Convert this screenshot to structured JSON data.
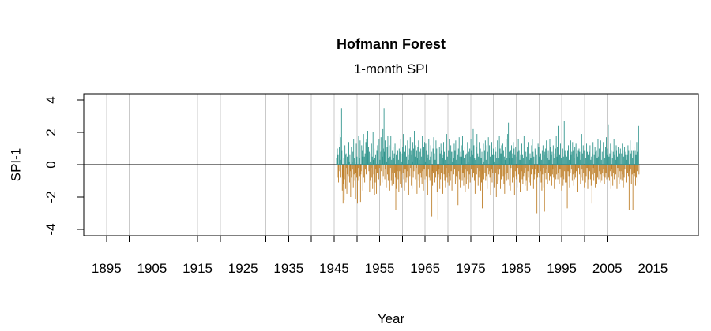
{
  "figure": {
    "title": "Hofmann Forest",
    "subtitle": "1-month SPI",
    "x_axis_label": "Year",
    "y_axis_label": "SPI-1"
  },
  "colors": {
    "positive": "#35978F",
    "negative": "#BF812D",
    "grid": "#C9C9C9",
    "axis": "#000000",
    "background": "#FFFFFF"
  },
  "chart_data": {
    "type": "bar",
    "title": "Hofmann Forest",
    "subtitle": "1-month SPI",
    "xlabel": "Year",
    "ylabel": "SPI-1",
    "xlim": [
      1890,
      2025
    ],
    "ylim": [
      -4.4,
      4.4
    ],
    "x_ticks": [
      1895,
      1900,
      1905,
      1910,
      1915,
      1920,
      1925,
      1930,
      1935,
      1940,
      1945,
      1950,
      1955,
      1960,
      1965,
      1970,
      1975,
      1980,
      1985,
      1990,
      1995,
      2000,
      2005,
      2010,
      2015
    ],
    "x_tick_labels": [
      1895,
      1905,
      1915,
      1925,
      1935,
      1945,
      1955,
      1965,
      1975,
      1985,
      1995,
      2005,
      2015
    ],
    "y_ticks": [
      -4,
      -2,
      0,
      2,
      4
    ],
    "grid": "vertical gray lines at every 5-year tick",
    "zero_line": true,
    "legend": "none",
    "frequency": "monthly",
    "series_start_year": 1945,
    "series_start_month": 7,
    "positive_color": "#35978F",
    "negative_color": "#BF812D",
    "values": [
      0.4,
      -0.6,
      1.0,
      0.6,
      -0.8,
      -1.1,
      0.6,
      1.1,
      -0.4,
      1.9,
      0.3,
      -0.8,
      1.7,
      3.5,
      0.9,
      -1.6,
      -0.8,
      -2.4,
      -1.2,
      0.4,
      -2.2,
      -0.9,
      1.2,
      0.6,
      -1.5,
      0.7,
      -0.2,
      -1.8,
      0.5,
      -0.6,
      0.9,
      -0.7,
      1.4,
      0.2,
      -1.1,
      0.6,
      -0.4,
      -2.0,
      -0.8,
      1.1,
      0.5,
      0.2,
      -0.3,
      0.8,
      -1.4,
      1.6,
      -0.6,
      0.4,
      -1.0,
      0.2,
      -2.1,
      -0.5,
      1.3,
      -0.8,
      0.5,
      -2.4,
      -1.0,
      -0.2,
      1.8,
      1.2,
      0.4,
      -0.7,
      1.5,
      -2.3,
      -0.6,
      -0.4,
      1.2,
      0.5,
      0.9,
      -1.6,
      0.3,
      1.9,
      -0.8,
      0.5,
      -1.1,
      0.7,
      -0.3,
      1.4,
      -0.6,
      1.6,
      -1.3,
      0.4,
      2.1,
      0.9,
      1.1,
      -0.4,
      0.8,
      -1.7,
      0.2,
      -1.0,
      0.7,
      -0.2,
      1.3,
      -0.8,
      0.5,
      -1.5,
      2.0,
      0.3,
      -0.6,
      1.0,
      -1.9,
      0.4,
      -1.1,
      0.6,
      -0.3,
      -1.8,
      0.9,
      -0.5,
      1.2,
      -2.2,
      -0.4,
      -0.9,
      1.6,
      -0.2,
      0.3,
      -1.3,
      0.8,
      1.7,
      -0.4,
      0.9,
      -1.1,
      0.5,
      2.2,
      -0.7,
      1.0,
      3.5,
      0.8,
      -0.9,
      1.5,
      -0.3,
      0.6,
      -1.4,
      0.2,
      1.1,
      -0.6,
      1.8,
      -1.0,
      0.4,
      -0.7,
      1.2,
      -1.6,
      0.5,
      -0.2,
      1.8,
      -1.0,
      0.3,
      -1.3,
      0.9,
      -0.5,
      1.1,
      0.4,
      -1.2,
      0.7,
      -0.5,
      1.3,
      -0.8,
      -2.8,
      0.6,
      -1.5,
      2.5,
      -0.4,
      0.9,
      -0.9,
      0.3,
      -1.7,
      1.0,
      -0.4,
      0.8,
      -1.2,
      1.6,
      -0.6,
      0.2,
      -1.4,
      0.7,
      1.1,
      -0.5,
      1.9,
      -0.9,
      0.4,
      -1.6,
      0.8,
      -0.3,
      1.2,
      -1.1,
      0.5,
      -0.8,
      -0.4,
      1.5,
      -1.0,
      0.6,
      -1.9,
      0.3,
      1.0,
      -0.7,
      1.7,
      -0.2,
      0.9,
      -1.3,
      0.6,
      -1.5,
      0.2,
      1.4,
      -0.8,
      1.0,
      -0.4,
      2.1,
      1.2,
      0.5,
      -0.9,
      1.3,
      -0.2,
      0.9,
      -1.8,
      0.4,
      1.1,
      -0.6,
      1.5,
      -1.0,
      0.3,
      -1.4,
      0.8,
      -0.5,
      1.0,
      -0.8,
      0.5,
      -1.2,
      1.8,
      -0.4,
      0.7,
      -1.6,
      1.1,
      -0.3,
      1.4,
      -0.9,
      0.2,
      1.3,
      -0.7,
      0.9,
      -1.1,
      0.4,
      -1.9,
      0.6,
      -0.3,
      1.6,
      -0.8,
      0.3,
      -1.0,
      0.5,
      1.2,
      -0.6,
      0.8,
      -3.2,
      -0.4,
      -1.3,
      1.0,
      -0.5,
      1.7,
      -0.2,
      0.7,
      -1.1,
      0.3,
      -0.8,
      1.5,
      -0.4,
      1.0,
      -1.7,
      -0.6,
      -3.4,
      -0.8,
      -0.6,
      -0.3,
      1.1,
      -1.5,
      0.7,
      -0.9,
      1.3,
      -0.5,
      0.9,
      -1.2,
      0.4,
      -1.8,
      0.6,
      1.4,
      -0.6,
      0.8,
      -1.0,
      0.3,
      -1.4,
      1.1,
      -0.2,
      1.9,
      -0.8,
      0.5,
      -1.1,
      -0.5,
      0.9,
      -1.3,
      1.6,
      -0.7,
      0.4,
      -1.0,
      1.2,
      -0.4,
      0.8,
      -1.6,
      0.2,
      0.8,
      -1.9,
      0.4,
      -0.6,
      1.3,
      -0.3,
      0.9,
      -1.2,
      1.5,
      -0.7,
      0.3,
      -1.0,
      -0.8,
      0.6,
      -2.5,
      1.0,
      -0.4,
      1.7,
      -0.9,
      0.5,
      -1.4,
      0.8,
      -0.2,
      1.2,
      0.5,
      -1.0,
      1.8,
      -0.5,
      0.9,
      -1.3,
      0.4,
      -0.8,
      1.1,
      -1.7,
      0.6,
      -0.3,
      -1.2,
      0.7,
      -0.4,
      1.4,
      -0.9,
      0.2,
      -1.5,
      0.8,
      -0.6,
      1.0,
      -1.1,
      0.5,
      1.6,
      -0.3,
      0.9,
      -1.4,
      0.6,
      -0.8,
      2.2,
      -0.5,
      1.2,
      -1.0,
      0.4,
      -1.8,
      0.3,
      -0.9,
      1.1,
      -0.6,
      1.9,
      -0.2,
      0.7,
      -1.3,
      0.5,
      -0.8,
      1.4,
      -0.4,
      -0.7,
      1.0,
      -1.6,
      0.4,
      -1.1,
      0.8,
      -2.7,
      -0.6,
      -0.3,
      1.3,
      -0.9,
      0.2,
      0.9,
      -0.5,
      1.5,
      -1.0,
      0.3,
      -0.7,
      1.2,
      -1.5,
      0.8,
      -0.2,
      1.7,
      -0.6,
      -0.4,
      1.2,
      -0.8,
      0.5,
      -1.9,
      0.9,
      -0.3,
      1.4,
      -1.1,
      0.6,
      -0.5,
      1.0,
      0.6,
      -1.4,
      0.2,
      -0.9,
      1.1,
      -0.5,
      0.8,
      -2.0,
      0.4,
      -1.2,
      1.5,
      -0.3,
      -1.0,
      0.4,
      -0.6,
      1.8,
      -0.3,
      1.0,
      -1.5,
      0.7,
      -0.9,
      1.2,
      -0.4,
      0.8,
      1.3,
      -0.7,
      0.9,
      -1.2,
      0.5,
      -1.8,
      0.3,
      1.1,
      -0.6,
      1.6,
      -1.0,
      0.4,
      -0.5,
      1.9,
      -0.9,
      2.6,
      0.4,
      0.8,
      -1.3,
      0.5,
      -1.6,
      0.9,
      -0.2,
      1.2,
      0.4,
      -1.1,
      0.7,
      -0.3,
      1.4,
      -0.8,
      1.0,
      -1.9,
      0.6,
      -0.4,
      1.1,
      -0.7,
      -0.9,
      0.5,
      -1.4,
      0.8,
      -0.2,
      1.6,
      -0.6,
      0.9,
      -1.1,
      0.3,
      -1.7,
      0.6,
      1.0,
      -0.4,
      1.3,
      -0.9,
      0.6,
      -1.2,
      0.4,
      -0.7,
      1.8,
      -0.5,
      0.9,
      -1.3,
      -0.2,
      0.8,
      -1.0,
      0.5,
      -1.6,
      1.1,
      -0.4,
      1.4,
      -0.8,
      0.6,
      -1.1,
      0.3,
      0.7,
      -1.3,
      0.4,
      -0.6,
      1.2,
      -0.9,
      1.6,
      -0.3,
      0.8,
      -1.5,
      0.5,
      -0.9,
      -0.6,
      1.0,
      -0.3,
      0.9,
      -1.2,
      0.6,
      -3.0,
      -0.4,
      -0.8,
      1.3,
      -0.5,
      1.1,
      0.5,
      -0.8,
      1.4,
      -0.4,
      0.7,
      -1.1,
      0.3,
      -1.6,
      0.9,
      -0.6,
      1.2,
      -0.2,
      -1.4,
      0.6,
      -2.9,
      0.8,
      -0.5,
      1.0,
      -0.9,
      1.5,
      -0.3,
      0.7,
      -1.2,
      0.4,
      0.9,
      -0.5,
      0.3,
      -1.0,
      1.6,
      -0.7,
      1.1,
      -0.4,
      0.6,
      -1.3,
      0.8,
      -0.6,
      -0.3,
      1.2,
      -0.8,
      0.4,
      -1.5,
      0.7,
      -0.2,
      1.0,
      -0.9,
      1.8,
      -0.6,
      0.5,
      1.1,
      -0.9,
      2.4,
      -0.5,
      0.8,
      -1.2,
      0.6,
      -0.3,
      1.3,
      -0.8,
      0.4,
      -1.6,
      0.4,
      -0.7,
      1.0,
      -1.3,
      0.5,
      -0.9,
      2.7,
      -0.4,
      0.9,
      -1.1,
      0.6,
      -0.8,
      -1.1,
      0.5,
      -2.7,
      0.9,
      -0.4,
      1.2,
      -0.7,
      0.3,
      -1.4,
      0.8,
      -0.5,
      1.5,
      0.6,
      -0.3,
      0.8,
      -1.0,
      1.4,
      -0.6,
      0.9,
      -1.3,
      0.4,
      -0.9,
      1.1,
      -0.5,
      -0.8,
      1.3,
      -0.4,
      0.7,
      -1.1,
      0.5,
      -1.7,
      0.9,
      -0.2,
      1.0,
      -0.6,
      0.8,
      0.3,
      -1.2,
      0.6,
      -0.8,
      1.9,
      -0.3,
      0.7,
      -1.0,
      1.2,
      -0.5,
      0.9,
      -1.4,
      -0.6,
      0.9,
      -1.1,
      0.4,
      -0.7,
      1.3,
      -0.2,
      0.8,
      -1.5,
      0.6,
      -0.9,
      1.0,
      0.8,
      -0.4,
      1.2,
      -0.9,
      0.3,
      -1.3,
      0.5,
      -2.4,
      0.7,
      -0.6,
      1.4,
      -0.2,
      -1.0,
      0.6,
      -0.5,
      1.1,
      -1.4,
      0.8,
      -0.3,
      0.9,
      -1.2,
      0.4,
      -0.8,
      1.6,
      0.5,
      -0.9,
      1.0,
      -0.4,
      0.7,
      -1.1,
      1.5,
      -0.6,
      0.3,
      -1.0,
      0.8,
      -0.5,
      -0.3,
      1.4,
      -0.7,
      0.9,
      -1.2,
      0.4,
      -0.8,
      1.1,
      -0.5,
      1.7,
      -0.9,
      0.6,
      1.0,
      -0.6,
      2.5,
      -0.8,
      0.5,
      -1.0,
      0.7,
      -0.4,
      1.3,
      -1.5,
      0.9,
      -0.3,
      -0.7,
      0.4,
      -1.3,
      0.8,
      -0.5,
      1.6,
      -0.9,
      0.6,
      -1.1,
      0.3,
      -0.6,
      1.2,
      0.9,
      -1.5,
      0.5,
      -0.2,
      1.1,
      -0.8,
      0.4,
      -1.2,
      0.7,
      -0.4,
      1.0,
      -0.9,
      -0.4,
      0.7,
      -1.0,
      1.3,
      -0.6,
      0.9,
      -1.4,
      0.5,
      -0.8,
      1.1,
      -0.3,
      0.6,
      0.8,
      -0.9,
      0.3,
      -1.1,
      0.6,
      -0.5,
      1.2,
      -0.7,
      0.9,
      -2.8,
      -0.4,
      -1.0,
      1.5,
      -0.3,
      0.7,
      -1.2,
      0.9,
      -0.6,
      0.4,
      -2.8,
      0.9,
      -0.5,
      1.1,
      -0.7,
      -0.5,
      0.9,
      -1.3,
      0.6,
      -0.8,
      1.4,
      -0.4,
      0.8,
      -1.1,
      0.5,
      2.4,
      -0.6
    ]
  }
}
